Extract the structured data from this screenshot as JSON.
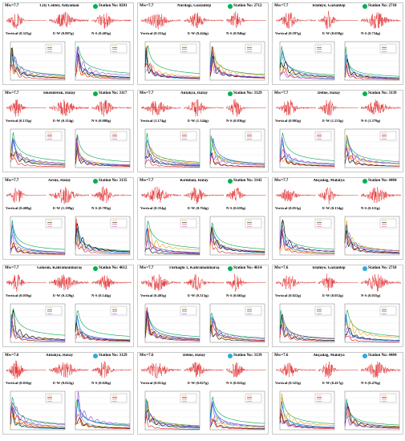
{
  "panels": [
    {
      "mag": "Mw=7.7",
      "city": "City Center, Adıyaman",
      "station": "Station No: 0201",
      "dot": "#00b050",
      "v": "Vertical (0.325g)",
      "ew": "E-W (0.807g)",
      "ns": "N-S (0.403g)"
    },
    {
      "mag": "Mw=7.7",
      "city": "Nurdağı, Gaziantep",
      "station": "Station No: 2712",
      "dot": "#00b050",
      "v": "Vertical (0.352g)",
      "ew": "E-W (0.444g)",
      "ns": "N-S (0.946g)"
    },
    {
      "mag": "Mw=7.7",
      "city": "İslahiye, Gaziantep",
      "station": "Station No: 2718",
      "dot": "#00b050",
      "v": "Vertical (0.597g)",
      "ew": "E-W (0.658g)",
      "ns": "N-S (0.734g)"
    },
    {
      "mag": "Mw=7.7",
      "city": "İskenderun, Hatay",
      "station": "Station No: 3117",
      "dot": "#00b050",
      "v": "Vertical (0.133g)",
      "ew": "E-W (0.114g)",
      "ns": "N-S (0.088g)"
    },
    {
      "mag": "Mw=7.7",
      "city": "Antakya, Hatay",
      "station": "Station No: 3129",
      "dot": "#00b050",
      "v": "Vertical (1.174g)",
      "ew": "E-W (1.144g)",
      "ns": "N-S (0.836g)"
    },
    {
      "mag": "Mw=7.7",
      "city": "Defne, Hatay",
      "station": "Station No: 3139",
      "dot": "#00b050",
      "v": "Vertical (0.802g)",
      "ew": "E-W (1.233g)",
      "ns": "N-S (1.379g)"
    },
    {
      "mag": "Mw=7.7",
      "city": "Arsuz, Hatay",
      "station": "Station No: 3135",
      "dot": "#00b050",
      "v": "Vertical (0.408g)",
      "ew": "E-W (1.399g)",
      "ns": "N-S (0.785g)"
    },
    {
      "mag": "Mw=7.7",
      "city": "Kırıkhan, Hatay",
      "station": "Station No: 3142",
      "dot": "#00b050",
      "v": "Vertical (0.354g)",
      "ew": "E-W (0.764g)",
      "ns": "N-S (0.659g)"
    },
    {
      "mag": "Mw=7.7",
      "city": "Akçadağ, Malatya",
      "station": "Station No: 4404",
      "dot": "#00b050",
      "v": "Vertical (0.051g)",
      "ew": "E-W (0.134g)",
      "ns": "N-S (0.111g)"
    },
    {
      "mag": "Mw=7.7",
      "city": "Göksun, Kahramanmaraş",
      "station": "Station No: 4612",
      "dot": "#00b050",
      "v": "Vertical (0.059g)",
      "ew": "E-W (0.129g)",
      "ns": "N-S (0.144g)"
    },
    {
      "mag": "Mw=7.7",
      "city": "Türkoğlu 1, Kahramanmaraş",
      "station": "Station No: 4614",
      "dot": "#00b050",
      "v": "Vertical (0.405g)",
      "ew": "E-W (0.513g)",
      "ns": "N-S (0.665g)"
    },
    {
      "mag": "Mw=7.6",
      "city": "İslahiye, Gaziantep",
      "station": "Station No: 2718",
      "dot": "#2eaadc",
      "v": "Vertical (0.022g)",
      "ew": "E-W (0.052g)",
      "ns": "N-S (0.035g)"
    },
    {
      "mag": "Mw=7.6",
      "city": "Antakya, Hatay",
      "station": "Station No: 3129",
      "dot": "#2eaadc",
      "v": "Vertical (0.010g)",
      "ew": "E-W (0.022g)",
      "ns": "N-S (0.026g)"
    },
    {
      "mag": "Mw=7.6",
      "city": "Defne, Hatay",
      "station": "Station No: 3139",
      "dot": "#2eaadc",
      "v": "Vertical (0.012g)",
      "ew": "E-W (0.027g)",
      "ns": "N-S (0.022g)"
    },
    {
      "mag": "Mw=7.6",
      "city": "Akçadağ, Malatya",
      "station": "Station No: 4404",
      "dot": "#2eaadc",
      "v": "Vertical (0.325g)",
      "ew": "E-W (0.417g)",
      "ns": "N-S (0.476g)"
    }
  ]
}
